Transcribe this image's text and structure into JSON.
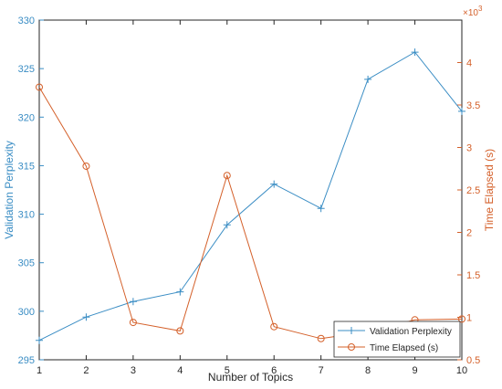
{
  "chart_data": {
    "type": "line",
    "title": "",
    "xlabel": "Number of Topics",
    "ylabel_left": "Validation Perplexity",
    "ylabel_right": "Time Elapsed (s)",
    "right_exponent_label": "×10",
    "right_exponent_power": "3",
    "x": [
      1,
      2,
      3,
      4,
      5,
      6,
      7,
      8,
      9,
      10
    ],
    "xlim": [
      1,
      10
    ],
    "xticks": [
      "1",
      "2",
      "3",
      "4",
      "5",
      "6",
      "7",
      "8",
      "9",
      "10"
    ],
    "ylim_left": [
      295,
      330
    ],
    "yticks_left": [
      "295",
      "300",
      "305",
      "310",
      "315",
      "320",
      "325",
      "330"
    ],
    "ylim_right": [
      0.5,
      4.5
    ],
    "yticks_right": [
      "0.5",
      "1",
      "1.5",
      "2",
      "2.5",
      "3",
      "3.5",
      "4"
    ],
    "grid": false,
    "legend_position": "bottom-right",
    "series": [
      {
        "name": "Validation Perplexity",
        "axis": "left",
        "marker": "plus",
        "color": "#3a8dc4",
        "values": [
          297.0,
          299.4,
          301.0,
          302.0,
          308.9,
          313.1,
          310.6,
          323.9,
          326.7,
          320.6
        ]
      },
      {
        "name": "Time Elapsed (s)",
        "axis": "right",
        "marker": "circle",
        "color": "#d4602a",
        "values": [
          3.71,
          2.78,
          0.94,
          0.84,
          2.67,
          0.89,
          0.75,
          0.83,
          0.97,
          0.98
        ]
      }
    ]
  }
}
